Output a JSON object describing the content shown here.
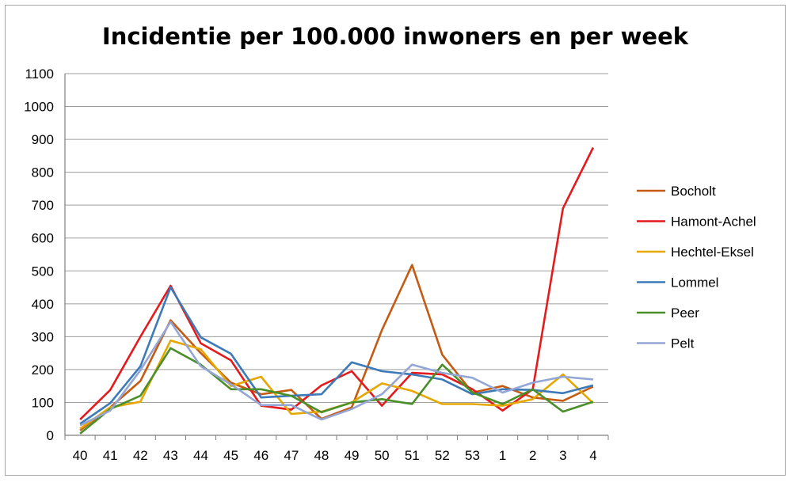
{
  "chart_data": {
    "type": "line",
    "title": "Incidentie per 100.000 inwoners en per week",
    "xlabel": "",
    "ylabel": "",
    "ylim": [
      0,
      1100
    ],
    "yticks": [
      0,
      100,
      200,
      300,
      400,
      500,
      600,
      700,
      800,
      900,
      1000,
      1100
    ],
    "grid": "horizontal",
    "legend": "right",
    "categories": [
      "40",
      "41",
      "42",
      "43",
      "44",
      "45",
      "46",
      "47",
      "48",
      "49",
      "50",
      "51",
      "52",
      "53",
      "1",
      "2",
      "3",
      "4"
    ],
    "series": [
      {
        "name": "Bocholt",
        "color": "#c55a11",
        "values": [
          15,
          85,
          165,
          350,
          250,
          160,
          125,
          138,
          50,
          85,
          320,
          518,
          245,
          130,
          150,
          115,
          105,
          148
        ]
      },
      {
        "name": "Hamont-Achel",
        "color": "#e41a1c",
        "values": [
          48,
          138,
          300,
          455,
          280,
          228,
          90,
          78,
          152,
          195,
          90,
          190,
          185,
          140,
          75,
          140,
          690,
          875
        ]
      },
      {
        "name": "Hechtel-Eksel",
        "color": "#e6a700",
        "values": [
          20,
          85,
          102,
          288,
          262,
          150,
          178,
          65,
          72,
          100,
          158,
          135,
          95,
          95,
          90,
          110,
          185,
          98
        ]
      },
      {
        "name": "Lommel",
        "color": "#3d7ab8",
        "values": [
          35,
          98,
          210,
          450,
          298,
          248,
          115,
          120,
          125,
          222,
          195,
          185,
          170,
          125,
          140,
          138,
          128,
          152
        ]
      },
      {
        "name": "Peer",
        "color": "#4a8f2a",
        "values": [
          5,
          80,
          120,
          265,
          215,
          140,
          140,
          120,
          70,
          100,
          110,
          95,
          215,
          130,
          95,
          140,
          72,
          102
        ]
      },
      {
        "name": "Pelt",
        "color": "#93a6d6",
        "values": [
          30,
          75,
          198,
          345,
          210,
          155,
          92,
          92,
          48,
          80,
          125,
          215,
          190,
          175,
          130,
          160,
          178,
          170
        ]
      }
    ]
  }
}
